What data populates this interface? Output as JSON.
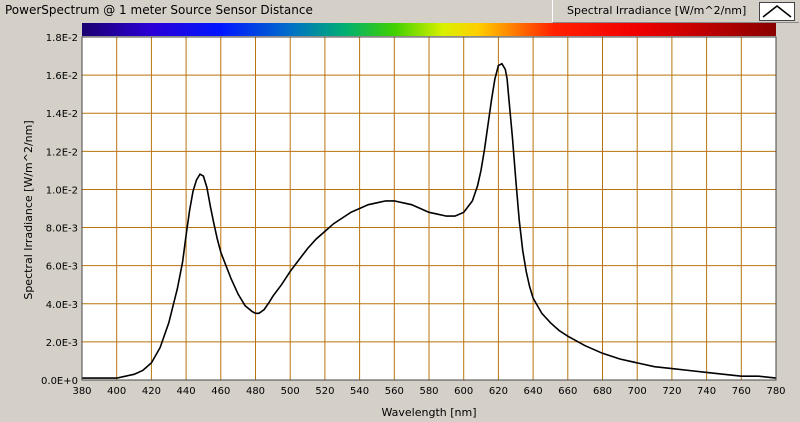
{
  "window": {
    "title": "PowerSpectrum @ 1 meter Source Sensor Distance"
  },
  "legend": {
    "label": "Spectral Irradiance [W/m^2/nm]"
  },
  "colors": {
    "plot_bg": "#ffffff",
    "grid": "#b8740c",
    "line": "#000000"
  },
  "chart_data": {
    "type": "line",
    "title": "PowerSpectrum @ 1 meter Source Sensor Distance",
    "xlabel": "Wavelength [nm]",
    "ylabel": "Spectral Irradiance [W/m^2/nm]",
    "xlim": [
      380,
      780
    ],
    "ylim": [
      0,
      0.018
    ],
    "grid": true,
    "legend_position": "top-right",
    "x_ticks": [
      "380",
      "400",
      "420",
      "440",
      "460",
      "480",
      "500",
      "520",
      "540",
      "560",
      "580",
      "600",
      "620",
      "640",
      "660",
      "680",
      "700",
      "720",
      "740",
      "760",
      "780"
    ],
    "y_ticks": [
      "0.0E+0",
      "2.0E-3",
      "4.0E-3",
      "6.0E-3",
      "8.0E-3",
      "1.0E-2",
      "1.2E-2",
      "1.4E-2",
      "1.6E-2",
      "1.8E-2"
    ],
    "series": [
      {
        "name": "Spectral Irradiance [W/m^2/nm]",
        "x": [
          380,
          390,
          400,
          405,
          410,
          415,
          420,
          425,
          430,
          435,
          438,
          440,
          442,
          444,
          446,
          448,
          450,
          452,
          454,
          456,
          458,
          460,
          463,
          466,
          470,
          474,
          478,
          480,
          482,
          485,
          488,
          490,
          495,
          500,
          505,
          510,
          515,
          520,
          525,
          530,
          535,
          540,
          545,
          550,
          555,
          560,
          565,
          570,
          575,
          580,
          585,
          590,
          595,
          600,
          605,
          608,
          610,
          612,
          614,
          616,
          618,
          620,
          622,
          624,
          625,
          626,
          628,
          630,
          632,
          634,
          636,
          638,
          640,
          645,
          650,
          655,
          660,
          670,
          680,
          690,
          700,
          710,
          720,
          730,
          740,
          750,
          760,
          770,
          780
        ],
        "y": [
          0.0001,
          0.0001,
          0.0001,
          0.0002,
          0.0003,
          0.0005,
          0.0009,
          0.0017,
          0.003,
          0.0048,
          0.0062,
          0.0076,
          0.0089,
          0.0099,
          0.0105,
          0.0108,
          0.0107,
          0.0101,
          0.0091,
          0.0082,
          0.0074,
          0.0067,
          0.006,
          0.0053,
          0.0045,
          0.0039,
          0.0036,
          0.0035,
          0.0035,
          0.0037,
          0.0041,
          0.0044,
          0.005,
          0.0057,
          0.0063,
          0.0069,
          0.0074,
          0.0078,
          0.0082,
          0.0085,
          0.0088,
          0.009,
          0.0092,
          0.0093,
          0.0094,
          0.0094,
          0.0093,
          0.0092,
          0.009,
          0.0088,
          0.0087,
          0.0086,
          0.0086,
          0.0088,
          0.0094,
          0.0102,
          0.011,
          0.0121,
          0.0134,
          0.0147,
          0.0158,
          0.0165,
          0.0166,
          0.0163,
          0.0158,
          0.0148,
          0.0128,
          0.0105,
          0.0084,
          0.0068,
          0.0057,
          0.0049,
          0.0043,
          0.0035,
          0.003,
          0.0026,
          0.0023,
          0.0018,
          0.0014,
          0.0011,
          0.0009,
          0.0007,
          0.0006,
          0.0005,
          0.0004,
          0.0003,
          0.0002,
          0.0002,
          0.0001
        ]
      }
    ]
  }
}
